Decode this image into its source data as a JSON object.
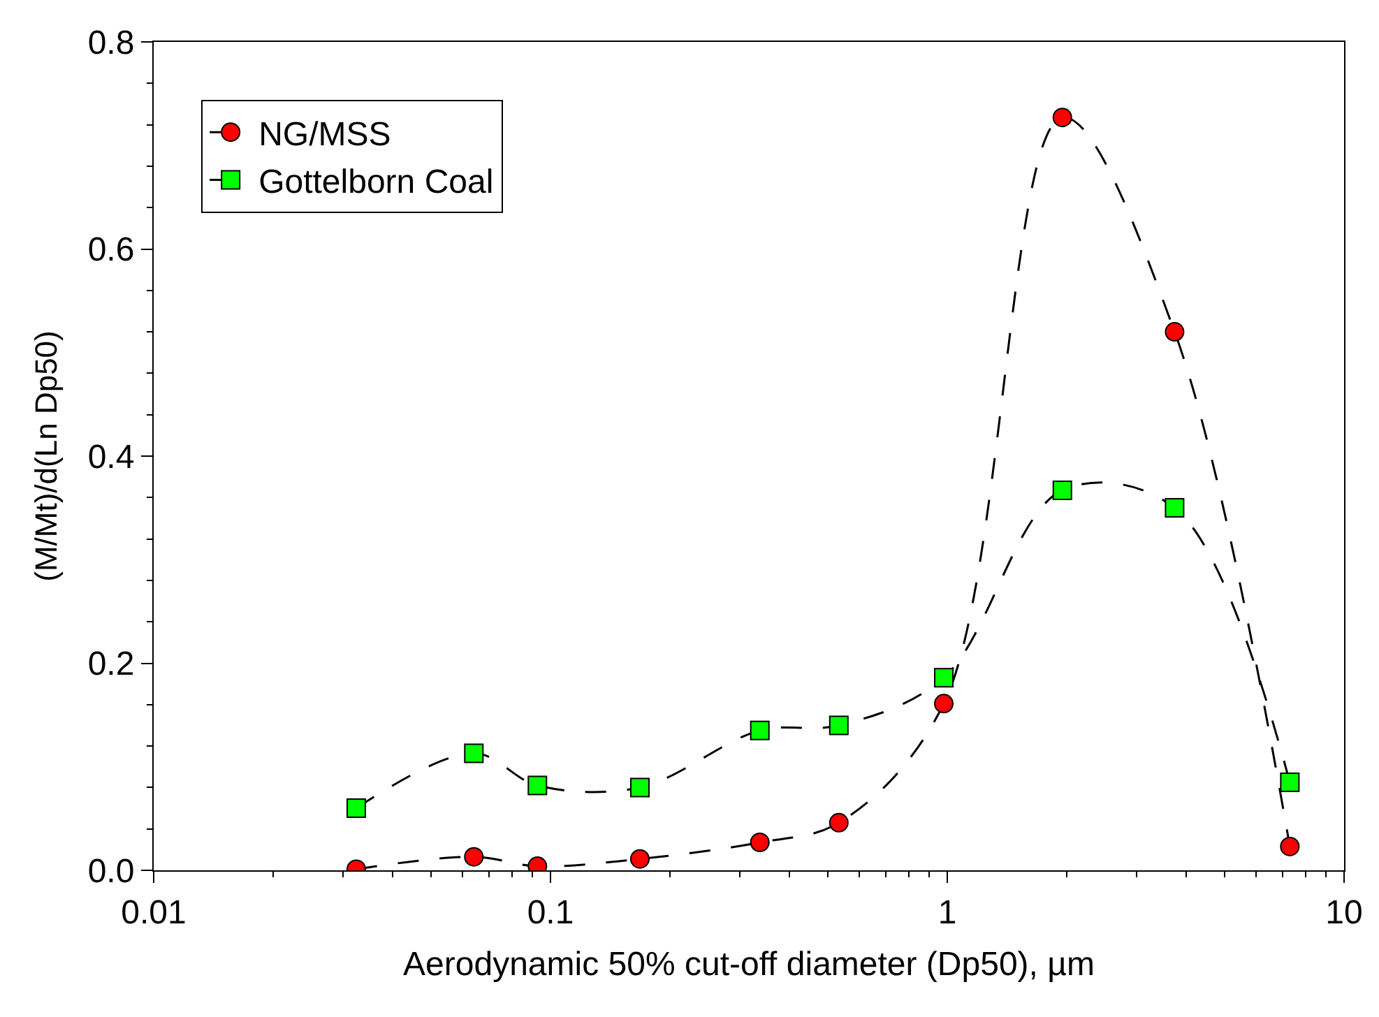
{
  "chart_data": {
    "type": "line",
    "xlabel": "Aerodynamic 50% cut-off diameter (Dp50), µm",
    "ylabel": "(M/Mt)/d(Ln Dp50)",
    "x": [
      0.0324,
      0.0641,
      0.0927,
      0.168,
      0.337,
      0.533,
      0.98,
      1.95,
      3.74,
      7.3
    ],
    "series": [
      {
        "name": "NG/MSS",
        "color": "#ff0000",
        "marker": "circle",
        "values": [
          0.001,
          0.013,
          0.004,
          0.011,
          0.027,
          0.046,
          0.161,
          0.727,
          0.52,
          0.023
        ]
      },
      {
        "name": "Gottelborn Coal",
        "color": "#00ff00",
        "marker": "square",
        "values": [
          0.06,
          0.113,
          0.082,
          0.08,
          0.135,
          0.14,
          0.186,
          0.367,
          0.35,
          0.085
        ]
      }
    ],
    "log": "x",
    "xlim": [
      0.01,
      10
    ],
    "xticks": [
      0.01,
      0.1,
      1,
      10
    ],
    "ylim": [
      0,
      0.8
    ],
    "yticks": [
      {
        "value": 0,
        "label": "0.0"
      },
      0.2,
      0.4,
      0.6,
      0.8
    ],
    "line_style": "dashed",
    "legend": "top left"
  }
}
